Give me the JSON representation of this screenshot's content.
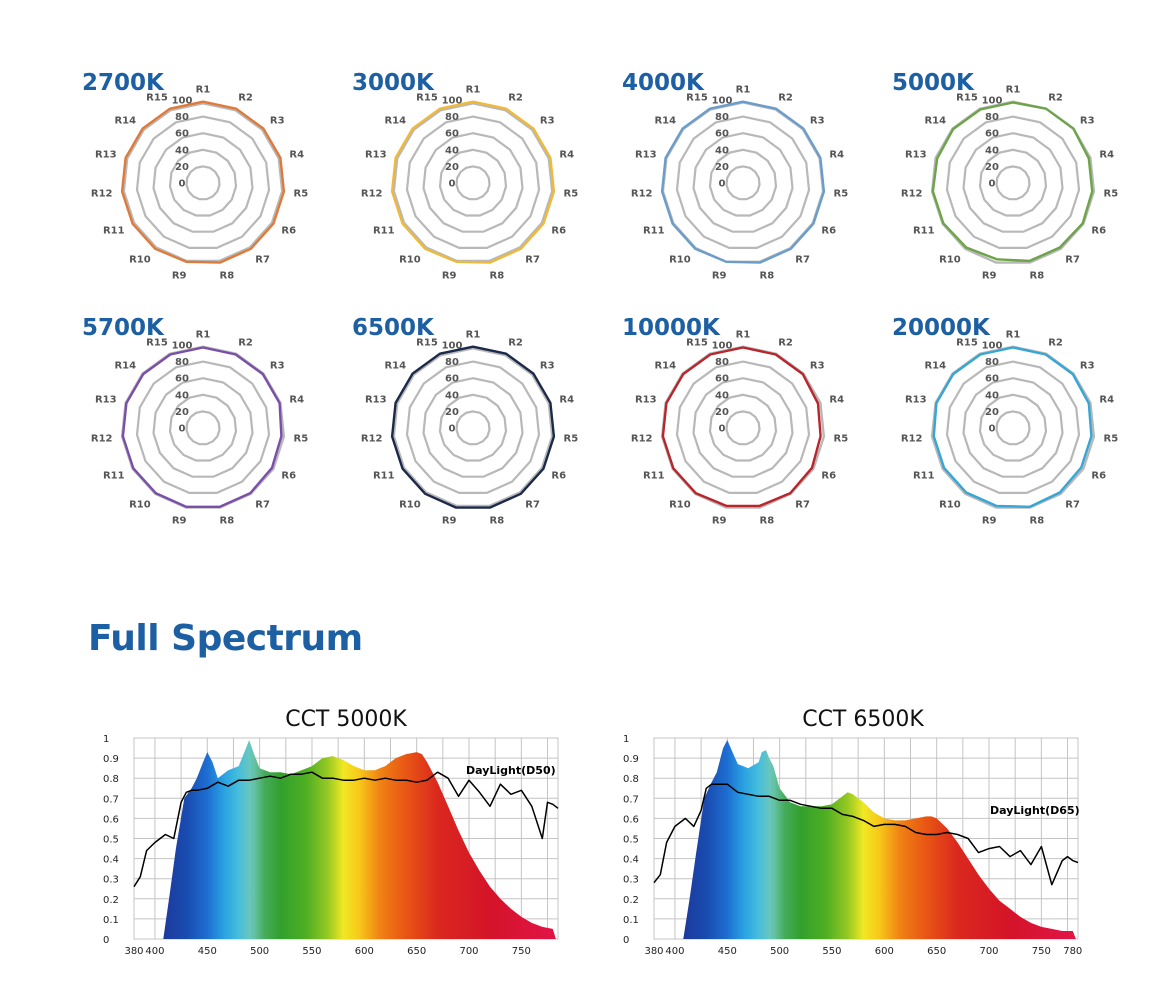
{
  "colors": {
    "cct_label": "#1d5fa3",
    "reference_ring": "#b8b8b8",
    "grid": "#c4c4c4",
    "axis_text": "#555555"
  },
  "section_title": "Full Spectrum",
  "chart_data": [
    {
      "type": "radar",
      "title": "2700K",
      "color": "#e07a3a",
      "axes": [
        "R1",
        "R2",
        "R3",
        "R4",
        "R5",
        "R6",
        "R7",
        "R8",
        "R9",
        "R10",
        "R11",
        "R12",
        "R13",
        "R14",
        "R15"
      ],
      "rings": [
        "0",
        "20",
        "40",
        "60",
        "80",
        "100"
      ],
      "values": [
        98,
        98,
        98,
        98,
        98,
        98,
        98,
        98,
        97,
        98,
        98,
        98,
        98,
        98,
        98
      ],
      "reference": [
        96,
        96,
        96,
        96,
        96,
        96,
        96,
        96,
        96,
        96,
        96,
        96,
        96,
        96,
        96
      ],
      "range": [
        0,
        100
      ]
    },
    {
      "type": "radar",
      "title": "3000K",
      "color": "#f0b93a",
      "axes": [
        "R1",
        "R2",
        "R3",
        "R4",
        "R5",
        "R6",
        "R7",
        "R8",
        "R9",
        "R10",
        "R11",
        "R12",
        "R13",
        "R14",
        "R15"
      ],
      "rings": [
        "0",
        "20",
        "40",
        "60",
        "80",
        "100"
      ],
      "values": [
        98,
        98,
        98,
        98,
        98,
        98,
        98,
        98,
        97,
        98,
        98,
        98,
        98,
        98,
        98
      ],
      "reference": [
        96,
        96,
        96,
        96,
        96,
        96,
        96,
        96,
        96,
        96,
        96,
        96,
        96,
        96,
        96
      ],
      "range": [
        0,
        100
      ]
    },
    {
      "type": "radar",
      "title": "4000K",
      "color": "#6a9dcc",
      "axes": [
        "R1",
        "R2",
        "R3",
        "R4",
        "R5",
        "R6",
        "R7",
        "R8",
        "R9",
        "R10",
        "R11",
        "R12",
        "R13",
        "R14",
        "R15"
      ],
      "rings": [
        "0",
        "20",
        "40",
        "60",
        "80",
        "100"
      ],
      "values": [
        98,
        98,
        98,
        98,
        98,
        98,
        98,
        98,
        97,
        98,
        98,
        98,
        98,
        98,
        98
      ],
      "reference": [
        97,
        97,
        97,
        97,
        97,
        97,
        97,
        97,
        97,
        97,
        97,
        97,
        97,
        97,
        97
      ],
      "range": [
        0,
        100
      ]
    },
    {
      "type": "radar",
      "title": "5000K",
      "color": "#6da349",
      "axes": [
        "R1",
        "R2",
        "R3",
        "R4",
        "R5",
        "R6",
        "R7",
        "R8",
        "R9",
        "R10",
        "R11",
        "R12",
        "R13",
        "R14",
        "R15"
      ],
      "rings": [
        "0",
        "20",
        "40",
        "60",
        "80",
        "100"
      ],
      "values": [
        97,
        98,
        98,
        96,
        96,
        97,
        96,
        96,
        94,
        96,
        97,
        97,
        96,
        97,
        97
      ],
      "reference": [
        98,
        98,
        98,
        98,
        98,
        98,
        98,
        98,
        98,
        98,
        98,
        98,
        98,
        98,
        98
      ],
      "range": [
        0,
        100
      ]
    },
    {
      "type": "radar",
      "title": "5700K",
      "color": "#7a4fa8",
      "axes": [
        "R1",
        "R2",
        "R3",
        "R4",
        "R5",
        "R6",
        "R7",
        "R8",
        "R9",
        "R10",
        "R11",
        "R12",
        "R13",
        "R14",
        "R15"
      ],
      "rings": [
        "0",
        "20",
        "40",
        "60",
        "80",
        "100"
      ],
      "values": [
        97,
        97,
        97,
        97,
        95,
        96,
        97,
        97,
        97,
        97,
        97,
        97,
        97,
        97,
        97
      ],
      "reference": [
        98,
        98,
        98,
        98,
        98,
        98,
        98,
        98,
        98,
        98,
        98,
        98,
        98,
        98,
        98
      ],
      "range": [
        0,
        100
      ]
    },
    {
      "type": "radar",
      "title": "6500K",
      "color": "#1b2a4a",
      "axes": [
        "R1",
        "R2",
        "R3",
        "R4",
        "R5",
        "R6",
        "R7",
        "R8",
        "R9",
        "R10",
        "R11",
        "R12",
        "R13",
        "R14",
        "R15"
      ],
      "rings": [
        "0",
        "20",
        "40",
        "60",
        "80",
        "100"
      ],
      "values": [
        98,
        98,
        98,
        98,
        98,
        98,
        98,
        98,
        98,
        98,
        98,
        98,
        98,
        98,
        98
      ],
      "reference": [
        96,
        96,
        96,
        96,
        96,
        96,
        96,
        96,
        96,
        96,
        96,
        96,
        96,
        96,
        96
      ],
      "range": [
        0,
        100
      ]
    },
    {
      "type": "radar",
      "title": "10000K",
      "color": "#b8262b",
      "axes": [
        "R1",
        "R2",
        "R3",
        "R4",
        "R5",
        "R6",
        "R7",
        "R8",
        "R9",
        "R10",
        "R11",
        "R12",
        "R13",
        "R14",
        "R15"
      ],
      "rings": [
        "0",
        "20",
        "40",
        "60",
        "80",
        "100"
      ],
      "values": [
        97,
        97,
        97,
        95,
        94,
        96,
        97,
        96,
        96,
        97,
        97,
        97,
        97,
        97,
        97
      ],
      "reference": [
        98,
        98,
        98,
        98,
        98,
        98,
        98,
        98,
        98,
        98,
        98,
        98,
        98,
        98,
        98
      ],
      "range": [
        0,
        100
      ]
    },
    {
      "type": "radar",
      "title": "20000K",
      "color": "#35a6d6",
      "axes": [
        "R1",
        "R2",
        "R3",
        "R4",
        "R5",
        "R6",
        "R7",
        "R8",
        "R9",
        "R10",
        "R11",
        "R12",
        "R13",
        "R14",
        "R15"
      ],
      "rings": [
        "0",
        "20",
        "40",
        "60",
        "80",
        "100"
      ],
      "values": [
        97,
        97,
        97,
        96,
        95,
        95,
        96,
        97,
        96,
        96,
        96,
        96,
        97,
        97,
        97
      ],
      "reference": [
        98,
        98,
        98,
        98,
        98,
        98,
        98,
        98,
        98,
        98,
        98,
        98,
        98,
        98,
        98
      ],
      "range": [
        0,
        100
      ]
    },
    {
      "type": "area",
      "title": "CCT 5000K",
      "reference_label": "DayLight(D50)",
      "x_ticks": [
        380,
        400,
        450,
        500,
        550,
        600,
        650,
        700,
        750
      ],
      "y_ticks": [
        "0",
        "0.1",
        "0.2",
        "0.3",
        "0.4",
        "0.5",
        "0.6",
        "0.7",
        "0.8",
        "0.9",
        "1"
      ],
      "xlim": [
        380,
        785
      ],
      "ylim": [
        0,
        1
      ],
      "series": [
        {
          "x": [
            380,
            408,
            414,
            420,
            428,
            435,
            440,
            446,
            450,
            455,
            460,
            465,
            470,
            480,
            487,
            490,
            494,
            500,
            510,
            520,
            530,
            540,
            550,
            560,
            570,
            580,
            590,
            600,
            610,
            620,
            630,
            640,
            650,
            655,
            660,
            670,
            680,
            690,
            700,
            710,
            720,
            730,
            740,
            750,
            760,
            770,
            780,
            783
          ],
          "y": [
            0,
            0,
            0.22,
            0.45,
            0.7,
            0.75,
            0.8,
            0.88,
            0.93,
            0.88,
            0.8,
            0.82,
            0.84,
            0.86,
            0.95,
            0.99,
            0.93,
            0.85,
            0.83,
            0.83,
            0.82,
            0.84,
            0.86,
            0.9,
            0.91,
            0.89,
            0.86,
            0.84,
            0.84,
            0.86,
            0.9,
            0.92,
            0.93,
            0.92,
            0.88,
            0.78,
            0.66,
            0.54,
            0.43,
            0.34,
            0.26,
            0.2,
            0.15,
            0.11,
            0.08,
            0.06,
            0.05,
            0
          ]
        },
        {
          "x": [
            380,
            386,
            392,
            400,
            410,
            418,
            425,
            430,
            435,
            440,
            450,
            460,
            470,
            480,
            490,
            500,
            510,
            520,
            530,
            540,
            550,
            560,
            570,
            580,
            590,
            600,
            610,
            620,
            630,
            640,
            650,
            660,
            670,
            680,
            690,
            700,
            710,
            720,
            730,
            740,
            750,
            760,
            770,
            775,
            780,
            785
          ],
          "y": [
            0.26,
            0.31,
            0.44,
            0.48,
            0.52,
            0.5,
            0.68,
            0.73,
            0.74,
            0.74,
            0.75,
            0.78,
            0.76,
            0.79,
            0.79,
            0.8,
            0.81,
            0.8,
            0.82,
            0.82,
            0.83,
            0.8,
            0.8,
            0.79,
            0.79,
            0.8,
            0.79,
            0.8,
            0.79,
            0.79,
            0.78,
            0.79,
            0.83,
            0.8,
            0.71,
            0.79,
            0.73,
            0.66,
            0.77,
            0.72,
            0.74,
            0.66,
            0.5,
            0.68,
            0.67,
            0.65
          ]
        }
      ]
    },
    {
      "type": "area",
      "title": "CCT 6500K",
      "reference_label": "DayLight(D65)",
      "x_ticks": [
        380,
        400,
        450,
        500,
        550,
        600,
        650,
        700,
        750,
        780
      ],
      "y_ticks": [
        "0",
        "0.1",
        "0.2",
        "0.3",
        "0.4",
        "0.5",
        "0.6",
        "0.7",
        "0.8",
        "0.9",
        "1"
      ],
      "xlim": [
        380,
        785
      ],
      "ylim": [
        0,
        1
      ],
      "series": [
        {
          "x": [
            380,
            408,
            414,
            420,
            428,
            435,
            440,
            446,
            450,
            455,
            460,
            465,
            470,
            480,
            483,
            487,
            490,
            494,
            500,
            510,
            520,
            530,
            540,
            550,
            560,
            565,
            570,
            580,
            590,
            600,
            610,
            620,
            630,
            640,
            645,
            650,
            660,
            670,
            680,
            690,
            700,
            710,
            720,
            730,
            740,
            750,
            760,
            770,
            780,
            783
          ],
          "y": [
            0,
            0,
            0.2,
            0.42,
            0.7,
            0.78,
            0.83,
            0.95,
            0.99,
            0.93,
            0.87,
            0.86,
            0.85,
            0.88,
            0.93,
            0.94,
            0.9,
            0.86,
            0.75,
            0.68,
            0.66,
            0.66,
            0.66,
            0.67,
            0.71,
            0.73,
            0.72,
            0.68,
            0.63,
            0.6,
            0.59,
            0.59,
            0.6,
            0.61,
            0.61,
            0.6,
            0.55,
            0.48,
            0.4,
            0.32,
            0.25,
            0.19,
            0.15,
            0.11,
            0.08,
            0.06,
            0.05,
            0.04,
            0.04,
            0
          ]
        },
        {
          "x": [
            380,
            386,
            392,
            400,
            410,
            418,
            425,
            430,
            435,
            440,
            450,
            460,
            470,
            480,
            490,
            500,
            510,
            520,
            530,
            540,
            550,
            560,
            570,
            580,
            590,
            600,
            610,
            620,
            630,
            640,
            650,
            660,
            670,
            680,
            690,
            700,
            710,
            720,
            730,
            740,
            750,
            760,
            770,
            775,
            780,
            785
          ],
          "y": [
            0.28,
            0.32,
            0.48,
            0.56,
            0.6,
            0.56,
            0.64,
            0.75,
            0.77,
            0.77,
            0.77,
            0.73,
            0.72,
            0.71,
            0.71,
            0.69,
            0.69,
            0.67,
            0.66,
            0.65,
            0.65,
            0.62,
            0.61,
            0.59,
            0.56,
            0.57,
            0.57,
            0.56,
            0.53,
            0.52,
            0.52,
            0.53,
            0.52,
            0.5,
            0.43,
            0.45,
            0.46,
            0.41,
            0.44,
            0.37,
            0.46,
            0.27,
            0.39,
            0.41,
            0.39,
            0.38
          ]
        }
      ]
    }
  ]
}
